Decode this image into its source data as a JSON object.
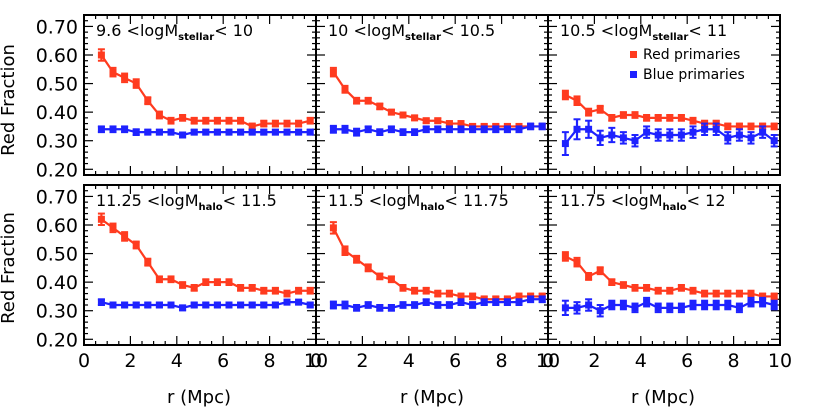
{
  "colors": {
    "red_series": "#ff3b1f",
    "blue_series": "#1e22ff",
    "axes": "#000000"
  },
  "chart_data": {
    "type": "line",
    "layout": "2x3 grid of panels, shared axes",
    "ylabel": "Red Fraction",
    "xlabel": "r (Mpc)",
    "xlim": [
      0,
      10
    ],
    "ylim": [
      0.18,
      0.74
    ],
    "xticks": [
      "0",
      "2",
      "4",
      "6",
      "8",
      "10"
    ],
    "yticks": [
      "0.20",
      "0.30",
      "0.40",
      "0.50",
      "0.60",
      "0.70"
    ],
    "x": [
      0.75,
      1.25,
      1.75,
      2.25,
      2.75,
      3.25,
      3.75,
      4.25,
      4.75,
      5.25,
      5.75,
      6.25,
      6.75,
      7.25,
      7.75,
      8.25,
      8.75,
      9.25,
      9.75
    ],
    "legend": {
      "placement": "top-right panel, upper right",
      "entries": [
        "Red primaries",
        "Blue primaries"
      ]
    },
    "panels": [
      {
        "label": {
          "pre": "9.6 <logM",
          "sub": "stellar",
          "post": "< 10"
        },
        "series": [
          {
            "name": "Red primaries",
            "color": "#ff3b1f",
            "values": [
              0.6,
              0.54,
              0.52,
              0.5,
              0.44,
              0.39,
              0.37,
              0.38,
              0.37,
              0.37,
              0.37,
              0.37,
              0.37,
              0.35,
              0.36,
              0.36,
              0.36,
              0.36,
              0.37
            ],
            "errors": [
              0.02,
              0.015,
              0.015,
              0.015,
              0.012,
              0.012,
              0.01,
              0.01,
              0.01,
              0.01,
              0.01,
              0.01,
              0.01,
              0.01,
              0.01,
              0.01,
              0.01,
              0.01,
              0.01
            ]
          },
          {
            "name": "Blue primaries",
            "color": "#1e22ff",
            "values": [
              0.34,
              0.34,
              0.34,
              0.33,
              0.33,
              0.33,
              0.33,
              0.32,
              0.33,
              0.33,
              0.33,
              0.33,
              0.33,
              0.33,
              0.33,
              0.33,
              0.33,
              0.33,
              0.33
            ],
            "errors": [
              0.01,
              0.01,
              0.01,
              0.01,
              0.008,
              0.008,
              0.008,
              0.008,
              0.008,
              0.008,
              0.008,
              0.008,
              0.008,
              0.008,
              0.008,
              0.008,
              0.008,
              0.008,
              0.008
            ]
          }
        ]
      },
      {
        "label": {
          "pre": "10 <logM",
          "sub": "stellar",
          "post": "< 10.5"
        },
        "series": [
          {
            "name": "Red primaries",
            "color": "#ff3b1f",
            "values": [
              0.54,
              0.48,
              0.44,
              0.44,
              0.42,
              0.4,
              0.39,
              0.38,
              0.37,
              0.37,
              0.36,
              0.36,
              0.35,
              0.35,
              0.35,
              0.35,
              0.35,
              0.35,
              0.35
            ],
            "errors": [
              0.015,
              0.012,
              0.01,
              0.01,
              0.01,
              0.008,
              0.008,
              0.008,
              0.008,
              0.008,
              0.008,
              0.008,
              0.008,
              0.008,
              0.008,
              0.008,
              0.008,
              0.008,
              0.008
            ]
          },
          {
            "name": "Blue primaries",
            "color": "#1e22ff",
            "values": [
              0.34,
              0.34,
              0.33,
              0.34,
              0.33,
              0.34,
              0.33,
              0.33,
              0.34,
              0.34,
              0.34,
              0.34,
              0.34,
              0.34,
              0.34,
              0.34,
              0.34,
              0.35,
              0.35
            ],
            "errors": [
              0.012,
              0.012,
              0.012,
              0.01,
              0.01,
              0.01,
              0.01,
              0.01,
              0.01,
              0.01,
              0.01,
              0.01,
              0.01,
              0.01,
              0.01,
              0.01,
              0.01,
              0.01,
              0.01
            ]
          }
        ]
      },
      {
        "label": {
          "pre": "10.5 <logM",
          "sub": "stellar",
          "post": "< 11"
        },
        "series": [
          {
            "name": "Red primaries",
            "color": "#ff3b1f",
            "values": [
              0.46,
              0.44,
              0.4,
              0.41,
              0.38,
              0.39,
              0.39,
              0.38,
              0.38,
              0.38,
              0.38,
              0.37,
              0.36,
              0.36,
              0.35,
              0.35,
              0.35,
              0.35,
              0.35
            ],
            "errors": [
              0.015,
              0.015,
              0.012,
              0.012,
              0.01,
              0.01,
              0.01,
              0.01,
              0.01,
              0.01,
              0.01,
              0.01,
              0.01,
              0.01,
              0.01,
              0.01,
              0.01,
              0.01,
              0.01
            ]
          },
          {
            "name": "Blue primaries",
            "color": "#1e22ff",
            "values": [
              0.29,
              0.34,
              0.34,
              0.31,
              0.32,
              0.31,
              0.3,
              0.33,
              0.32,
              0.32,
              0.32,
              0.33,
              0.34,
              0.34,
              0.31,
              0.32,
              0.31,
              0.33,
              0.3
            ],
            "errors": [
              0.04,
              0.035,
              0.03,
              0.025,
              0.025,
              0.02,
              0.02,
              0.02,
              0.02,
              0.02,
              0.02,
              0.02,
              0.02,
              0.02,
              0.02,
              0.02,
              0.02,
              0.02,
              0.02
            ]
          }
        ]
      },
      {
        "label": {
          "pre": "11.25 <logM",
          "sub": "halo",
          "post": "< 11.5"
        },
        "series": [
          {
            "name": "Red primaries",
            "color": "#ff3b1f",
            "values": [
              0.62,
              0.59,
              0.56,
              0.53,
              0.47,
              0.41,
              0.41,
              0.39,
              0.38,
              0.4,
              0.4,
              0.4,
              0.38,
              0.38,
              0.37,
              0.37,
              0.36,
              0.37,
              0.37
            ],
            "errors": [
              0.02,
              0.015,
              0.015,
              0.012,
              0.012,
              0.01,
              0.01,
              0.01,
              0.01,
              0.01,
              0.01,
              0.01,
              0.01,
              0.01,
              0.01,
              0.01,
              0.01,
              0.01,
              0.01
            ]
          },
          {
            "name": "Blue primaries",
            "color": "#1e22ff",
            "values": [
              0.33,
              0.32,
              0.32,
              0.32,
              0.32,
              0.32,
              0.32,
              0.31,
              0.32,
              0.32,
              0.32,
              0.32,
              0.32,
              0.32,
              0.32,
              0.32,
              0.33,
              0.33,
              0.32
            ],
            "errors": [
              0.01,
              0.008,
              0.008,
              0.008,
              0.008,
              0.008,
              0.008,
              0.008,
              0.008,
              0.008,
              0.008,
              0.008,
              0.008,
              0.008,
              0.008,
              0.008,
              0.008,
              0.008,
              0.008
            ]
          }
        ]
      },
      {
        "label": {
          "pre": "11.5 <logM",
          "sub": "halo",
          "post": "< 11.75"
        },
        "series": [
          {
            "name": "Red primaries",
            "color": "#ff3b1f",
            "values": [
              0.59,
              0.51,
              0.48,
              0.45,
              0.42,
              0.41,
              0.38,
              0.37,
              0.37,
              0.36,
              0.36,
              0.35,
              0.35,
              0.34,
              0.34,
              0.34,
              0.35,
              0.35,
              0.35
            ],
            "errors": [
              0.02,
              0.015,
              0.012,
              0.012,
              0.01,
              0.01,
              0.01,
              0.01,
              0.01,
              0.01,
              0.01,
              0.01,
              0.01,
              0.01,
              0.01,
              0.01,
              0.01,
              0.01,
              0.01
            ]
          },
          {
            "name": "Blue primaries",
            "color": "#1e22ff",
            "values": [
              0.32,
              0.32,
              0.31,
              0.32,
              0.31,
              0.31,
              0.32,
              0.32,
              0.33,
              0.32,
              0.32,
              0.33,
              0.32,
              0.33,
              0.33,
              0.33,
              0.33,
              0.34,
              0.34
            ],
            "errors": [
              0.012,
              0.012,
              0.01,
              0.01,
              0.01,
              0.01,
              0.01,
              0.01,
              0.01,
              0.01,
              0.01,
              0.01,
              0.01,
              0.01,
              0.01,
              0.01,
              0.01,
              0.01,
              0.01
            ]
          }
        ]
      },
      {
        "label": {
          "pre": "11.75 <logM",
          "sub": "halo",
          "post": "< 12"
        },
        "series": [
          {
            "name": "Red primaries",
            "color": "#ff3b1f",
            "values": [
              0.49,
              0.47,
              0.42,
              0.44,
              0.4,
              0.39,
              0.38,
              0.38,
              0.37,
              0.37,
              0.38,
              0.37,
              0.36,
              0.36,
              0.36,
              0.36,
              0.36,
              0.35,
              0.35
            ],
            "errors": [
              0.015,
              0.015,
              0.012,
              0.012,
              0.01,
              0.01,
              0.01,
              0.01,
              0.01,
              0.01,
              0.01,
              0.01,
              0.01,
              0.01,
              0.01,
              0.01,
              0.01,
              0.01,
              0.01
            ]
          },
          {
            "name": "Blue primaries",
            "color": "#1e22ff",
            "values": [
              0.31,
              0.31,
              0.32,
              0.3,
              0.32,
              0.32,
              0.31,
              0.33,
              0.31,
              0.31,
              0.31,
              0.32,
              0.32,
              0.32,
              0.32,
              0.31,
              0.33,
              0.33,
              0.32
            ],
            "errors": [
              0.025,
              0.02,
              0.02,
              0.02,
              0.015,
              0.015,
              0.015,
              0.015,
              0.015,
              0.015,
              0.015,
              0.015,
              0.015,
              0.015,
              0.015,
              0.015,
              0.015,
              0.015,
              0.015
            ]
          }
        ]
      }
    ]
  }
}
